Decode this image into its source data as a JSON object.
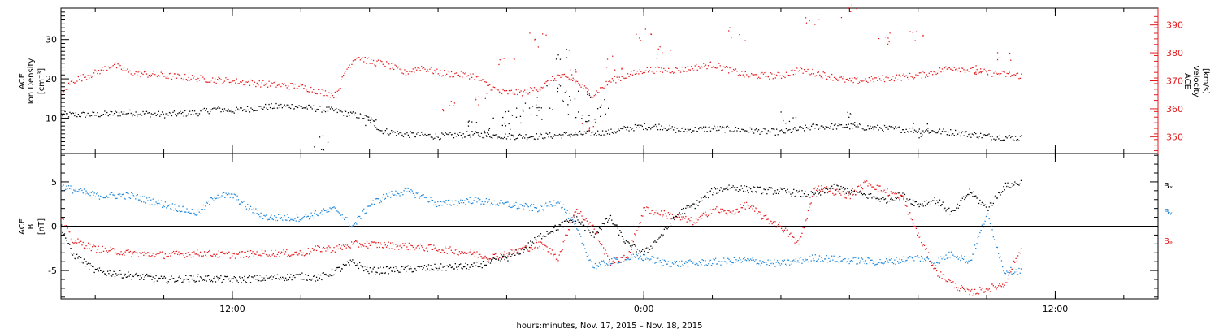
{
  "colors": {
    "black_series": "#000000",
    "red_series": "#e41a1c",
    "blue_series": "#1f86d8",
    "axis": "#000000"
  },
  "xaxis": {
    "label": "hours:minutes, Nov. 17, 2015 – Nov. 18, 2015",
    "range_hours": [
      7,
      39
    ],
    "ticks": [
      {
        "hour": 12,
        "label": "12:00"
      },
      {
        "hour": 24,
        "label": "0:00"
      },
      {
        "hour": 36,
        "label": "12:00"
      }
    ],
    "minor_tick_step_hours": 2
  },
  "chart_data": [
    {
      "type": "scatter",
      "panel": "plasma",
      "ylabel_left": [
        "ACE",
        "Ion Density",
        "[cm⁻³]"
      ],
      "ylabel_right": [
        "ACE",
        "Velocity",
        "[km/s]"
      ],
      "ylim_left": [
        1,
        38
      ],
      "ylim_right": [
        344,
        396
      ],
      "yticks_left": [
        10,
        20,
        30
      ],
      "yticks_right": [
        350,
        360,
        370,
        380,
        390
      ],
      "series": [
        {
          "axis": "left",
          "color": "black",
          "points": [
            [
              7.0,
              11.0
            ],
            [
              8.0,
              11.0
            ],
            [
              9.0,
              11.5
            ],
            [
              10.0,
              11.0
            ],
            [
              11.0,
              11.5
            ],
            [
              11.5,
              12.5
            ],
            [
              12.0,
              12.0
            ],
            [
              13.0,
              13.0
            ],
            [
              13.7,
              13.2
            ],
            [
              14.5,
              12.5
            ],
            [
              15.0,
              12.0
            ],
            [
              15.5,
              11.0
            ],
            [
              16.0,
              10.0
            ],
            [
              16.3,
              7.0
            ],
            [
              17.0,
              6.0
            ],
            [
              18.0,
              5.5
            ],
            [
              19.0,
              6.0
            ],
            [
              20.0,
              5.5
            ],
            [
              21.0,
              5.5
            ],
            [
              22.0,
              6.0
            ],
            [
              23.0,
              6.5
            ],
            [
              23.5,
              7.5
            ],
            [
              24.0,
              8.0
            ],
            [
              24.5,
              8.0
            ],
            [
              25.0,
              7.0
            ],
            [
              26.0,
              7.5
            ],
            [
              27.0,
              7.0
            ],
            [
              28.0,
              6.5
            ],
            [
              29.0,
              8.0
            ],
            [
              30.0,
              8.0
            ],
            [
              31.0,
              7.5
            ],
            [
              32.0,
              7.0
            ],
            [
              33.0,
              6.5
            ],
            [
              34.0,
              5.5
            ],
            [
              35.0,
              5.0
            ]
          ]
        },
        {
          "axis": "left",
          "color": "black",
          "scatter": [
            [
              20.2,
              9
            ],
            [
              20.5,
              12
            ],
            [
              20.8,
              14
            ],
            [
              21.1,
              11
            ],
            [
              21.4,
              18
            ],
            [
              21.6,
              27
            ],
            [
              21.8,
              16
            ],
            [
              22.0,
              12
            ],
            [
              22.2,
              15
            ],
            [
              22.5,
              9
            ],
            [
              22.8,
              13
            ],
            [
              19.8,
              10
            ],
            [
              19.4,
              7
            ],
            [
              18.9,
              8.5
            ],
            [
              14.6,
              4
            ],
            [
              16.0,
              9
            ],
            [
              28.2,
              10
            ],
            [
              30.0,
              10
            ],
            [
              32.1,
              7
            ]
          ]
        },
        {
          "axis": "right",
          "color": "red",
          "points": [
            [
              7.0,
              365
            ],
            [
              7.3,
              370
            ],
            [
              8.0,
              373
            ],
            [
              8.5,
              376
            ],
            [
              9.0,
              373
            ],
            [
              10.0,
              372
            ],
            [
              11.0,
              371
            ],
            [
              12.0,
              370
            ],
            [
              13.0,
              369
            ],
            [
              14.0,
              368
            ],
            [
              15.0,
              365
            ],
            [
              15.3,
              374
            ],
            [
              15.6,
              379
            ],
            [
              16.0,
              377
            ],
            [
              16.5,
              376
            ],
            [
              17.0,
              373
            ],
            [
              17.5,
              375
            ],
            [
              18.0,
              373
            ],
            [
              19.0,
              372
            ],
            [
              19.8,
              366
            ],
            [
              20.5,
              366
            ],
            [
              21.0,
              368
            ],
            [
              21.5,
              372
            ],
            [
              22.0,
              370
            ],
            [
              22.5,
              365
            ],
            [
              23.0,
              370
            ],
            [
              23.5,
              372
            ],
            [
              24.0,
              374
            ],
            [
              25.0,
              374
            ],
            [
              26.0,
              376
            ],
            [
              27.0,
              372
            ],
            [
              28.0,
              372
            ],
            [
              28.5,
              374
            ],
            [
              29.0,
              373
            ],
            [
              30.0,
              370
            ],
            [
              31.0,
              371
            ],
            [
              32.0,
              372
            ],
            [
              33.0,
              375
            ],
            [
              34.0,
              373
            ],
            [
              35.0,
              372
            ]
          ]
        },
        {
          "axis": "right",
          "color": "red",
          "scatter": [
            [
              18.3,
              361
            ],
            [
              19.2,
              364
            ],
            [
              20.0,
              376
            ],
            [
              20.9,
              385
            ],
            [
              21.9,
              374
            ],
            [
              22.4,
              354
            ],
            [
              23.1,
              376
            ],
            [
              24.0,
              386
            ],
            [
              24.6,
              380
            ],
            [
              26.7,
              387
            ],
            [
              28.9,
              391
            ],
            [
              30.0,
              395
            ],
            [
              31.0,
              385
            ],
            [
              32.0,
              387
            ],
            [
              33.8,
              375
            ],
            [
              34.5,
              380
            ]
          ]
        }
      ]
    },
    {
      "type": "scatter",
      "panel": "magnetic",
      "ylabel_left": [
        "ACE",
        "B",
        "[nT]"
      ],
      "ylim": [
        -8.2,
        8.2
      ],
      "yticks": [
        -5,
        0,
        5
      ],
      "zero_line": true,
      "legend": [
        "Bₓ",
        "Bᵧ",
        "Bₔ"
      ],
      "legend_colors": [
        "black",
        "blue",
        "red"
      ],
      "series": [
        {
          "name": "Bx",
          "color": "black",
          "points": [
            [
              7.0,
              0.0
            ],
            [
              7.3,
              -3.0
            ],
            [
              8.0,
              -5.0
            ],
            [
              9.0,
              -5.5
            ],
            [
              10.0,
              -6.0
            ],
            [
              11.0,
              -5.8
            ],
            [
              12.0,
              -6.0
            ],
            [
              13.0,
              -5.8
            ],
            [
              14.0,
              -5.6
            ],
            [
              14.5,
              -5.8
            ],
            [
              15.0,
              -5.0
            ],
            [
              15.5,
              -4.0
            ],
            [
              16.0,
              -5.0
            ],
            [
              17.0,
              -4.8
            ],
            [
              18.0,
              -4.6
            ],
            [
              19.0,
              -4.5
            ],
            [
              20.0,
              -3.5
            ],
            [
              20.5,
              -2.5
            ],
            [
              21.0,
              -1.0
            ],
            [
              22.0,
              1.0
            ],
            [
              22.5,
              -1.0
            ],
            [
              23.0,
              1.0
            ],
            [
              23.5,
              -2.0
            ],
            [
              24.0,
              -3.0
            ],
            [
              24.5,
              -1.0
            ],
            [
              25.0,
              1.5
            ],
            [
              25.5,
              2.5
            ],
            [
              26.0,
              4.0
            ],
            [
              26.5,
              4.5
            ],
            [
              27.0,
              4.2
            ],
            [
              28.0,
              4.0
            ],
            [
              29.0,
              3.5
            ],
            [
              29.5,
              4.5
            ],
            [
              30.0,
              4.0
            ],
            [
              31.0,
              3.0
            ],
            [
              31.5,
              3.5
            ],
            [
              32.0,
              2.5
            ],
            [
              32.5,
              3.0
            ],
            [
              33.0,
              1.5
            ],
            [
              33.5,
              4.0
            ],
            [
              34.0,
              2.0
            ],
            [
              34.5,
              4.5
            ],
            [
              35.0,
              5.0
            ]
          ]
        },
        {
          "name": "By",
          "color": "blue",
          "points": [
            [
              7.0,
              4.5
            ],
            [
              7.5,
              4.0
            ],
            [
              8.0,
              3.5
            ],
            [
              9.0,
              3.5
            ],
            [
              10.0,
              2.5
            ],
            [
              10.5,
              2.0
            ],
            [
              11.0,
              1.5
            ],
            [
              11.5,
              3.5
            ],
            [
              12.0,
              3.5
            ],
            [
              12.5,
              2.0
            ],
            [
              13.0,
              1.0
            ],
            [
              14.0,
              1.0
            ],
            [
              15.0,
              2.0
            ],
            [
              15.5,
              0.0
            ],
            [
              16.0,
              2.5
            ],
            [
              16.5,
              3.5
            ],
            [
              17.0,
              4.0
            ],
            [
              17.5,
              3.5
            ],
            [
              18.0,
              2.5
            ],
            [
              19.0,
              3.0
            ],
            [
              20.0,
              2.5
            ],
            [
              21.0,
              2.0
            ],
            [
              21.5,
              3.0
            ],
            [
              22.0,
              0.0
            ],
            [
              22.5,
              -4.5
            ],
            [
              23.0,
              -4.0
            ],
            [
              23.5,
              -3.5
            ],
            [
              24.0,
              -3.5
            ],
            [
              24.5,
              -4.0
            ],
            [
              25.0,
              -4.2
            ],
            [
              26.0,
              -4.0
            ],
            [
              27.0,
              -3.8
            ],
            [
              28.0,
              -4.2
            ],
            [
              29.0,
              -3.5
            ],
            [
              30.0,
              -3.8
            ],
            [
              31.0,
              -4.0
            ],
            [
              32.0,
              -3.5
            ],
            [
              32.5,
              -4.0
            ],
            [
              33.0,
              -3.0
            ],
            [
              33.5,
              -4.0
            ],
            [
              34.0,
              1.5
            ],
            [
              34.5,
              -5.0
            ],
            [
              35.0,
              -5.0
            ]
          ]
        },
        {
          "name": "Bz",
          "color": "red",
          "points": [
            [
              7.0,
              1.0
            ],
            [
              7.3,
              -1.5
            ],
            [
              8.0,
              -2.5
            ],
            [
              9.0,
              -3.0
            ],
            [
              10.0,
              -3.2
            ],
            [
              11.0,
              -3.0
            ],
            [
              12.0,
              -3.2
            ],
            [
              13.0,
              -3.0
            ],
            [
              14.0,
              -3.0
            ],
            [
              14.5,
              -2.5
            ],
            [
              15.0,
              -2.5
            ],
            [
              15.5,
              -2.0
            ],
            [
              16.0,
              -2.0
            ],
            [
              17.0,
              -2.2
            ],
            [
              18.0,
              -2.5
            ],
            [
              19.0,
              -3.0
            ],
            [
              19.5,
              -3.5
            ],
            [
              20.0,
              -3.0
            ],
            [
              21.0,
              -2.0
            ],
            [
              21.5,
              -3.5
            ],
            [
              22.0,
              2.0
            ],
            [
              22.5,
              0.0
            ],
            [
              23.0,
              -4.0
            ],
            [
              23.5,
              -3.5
            ],
            [
              24.0,
              2.0
            ],
            [
              24.5,
              1.5
            ],
            [
              25.0,
              1.0
            ],
            [
              25.5,
              0.5
            ],
            [
              26.0,
              2.0
            ],
            [
              26.5,
              1.5
            ],
            [
              27.0,
              2.5
            ],
            [
              27.5,
              1.0
            ],
            [
              28.0,
              0.0
            ],
            [
              28.5,
              -2.0
            ],
            [
              29.0,
              4.5
            ],
            [
              29.5,
              4.0
            ],
            [
              30.0,
              3.5
            ],
            [
              30.5,
              5.0
            ],
            [
              31.0,
              4.0
            ],
            [
              31.5,
              3.5
            ],
            [
              32.0,
              -1.0
            ],
            [
              32.5,
              -5.0
            ],
            [
              33.0,
              -6.5
            ],
            [
              33.5,
              -7.5
            ],
            [
              34.0,
              -7.0
            ],
            [
              34.5,
              -6.5
            ],
            [
              35.0,
              -2.5
            ]
          ]
        }
      ]
    }
  ]
}
